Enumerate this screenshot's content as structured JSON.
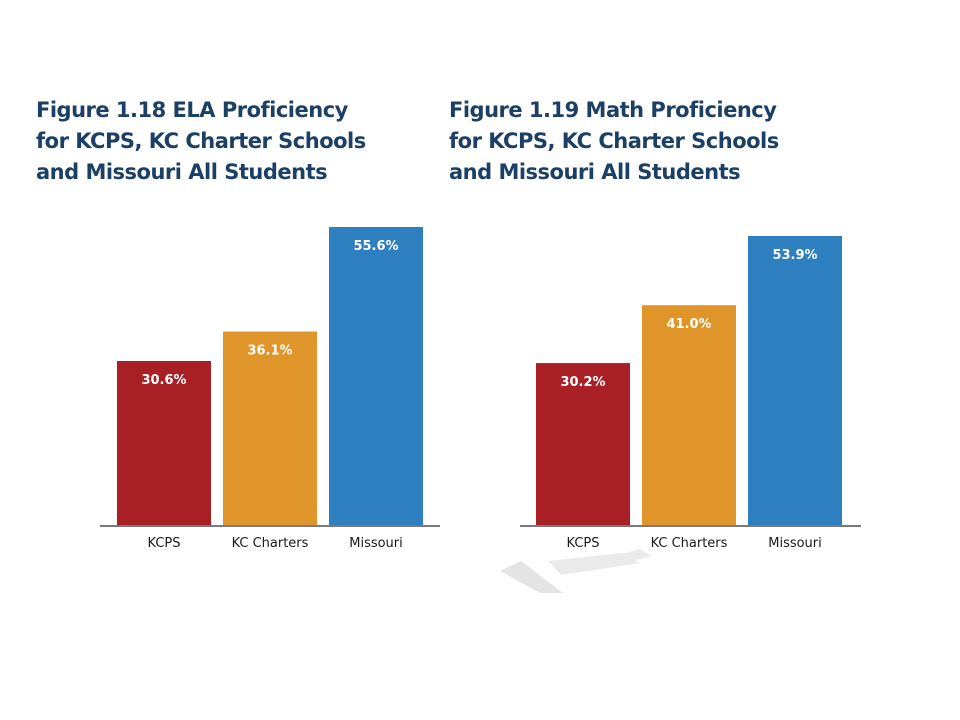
{
  "chart_data": [
    {
      "type": "bar",
      "title_lines": [
        "Figure 1.18 ELA Proficiency",
        "for KCPS, KC Charter Schools",
        "and Missouri All Students"
      ],
      "categories": [
        "KCPS",
        "KC Charters",
        "Missouri"
      ],
      "values": [
        30.6,
        36.1,
        55.6
      ],
      "value_labels": [
        "30.6%",
        "36.1%",
        "55.6%"
      ],
      "colors": [
        "#a82026",
        "#e0952a",
        "#2e7fc0"
      ],
      "ylim": [
        0,
        55.6
      ],
      "xlabel": "",
      "ylabel": "",
      "grid": false
    },
    {
      "type": "bar",
      "title_lines": [
        "Figure 1.19 Math Proficiency",
        "for KCPS, KC Charter Schools",
        "and Missouri All Students"
      ],
      "categories": [
        "KCPS",
        "KC Charters",
        "Missouri"
      ],
      "values": [
        30.2,
        41.0,
        53.9
      ],
      "value_labels": [
        "30.2%",
        "41.0%",
        "53.9%"
      ],
      "colors": [
        "#a82026",
        "#e0952a",
        "#2e7fc0"
      ],
      "ylim": [
        0,
        53.9
      ],
      "xlabel": "",
      "ylabel": "",
      "grid": false
    }
  ]
}
